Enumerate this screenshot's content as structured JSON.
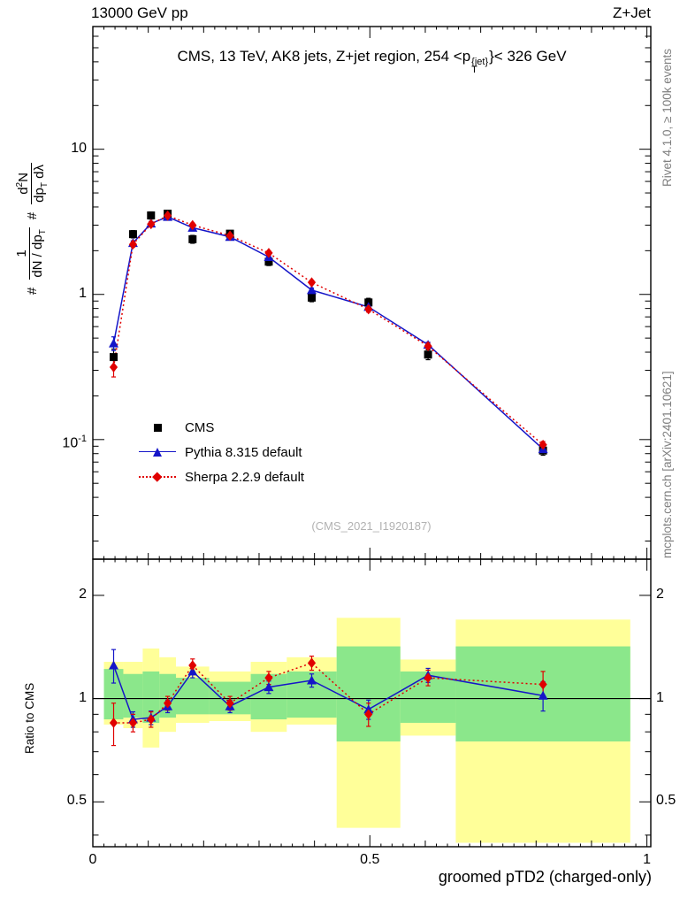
{
  "header": {
    "left": "13000 GeV pp",
    "right": "Z+Jet"
  },
  "title": {
    "prefix": "CMS, 13 TeV, AK8 jets, Z+jet region, 254 <p",
    "sup": "{jet}",
    "sub": "T",
    "suffix": "}< 326 GeV"
  },
  "side_notes": {
    "top": "Rivet 4.1.0, ≥ 100k events",
    "bottom": "mcplots.cern.ch [arXiv:2401.10621]"
  },
  "watermark": "(CMS_2021_I1920187)",
  "ratio_ylabel": "Ratio to CMS",
  "xlabel": "groomed pTD2 (charged-only)",
  "ylabel_main": {
    "hash1": "#",
    "frac1_num": "1",
    "frac1_den_pre": "dN / dp",
    "frac1_den_sub": "T",
    "hash2": "#",
    "frac2_num_pre": "d",
    "frac2_num_sup": "2",
    "frac2_num_post": "N",
    "frac2_den_pre": "dp",
    "frac2_den_sub": "T",
    "frac2_den_post": " dλ"
  },
  "legend": [
    {
      "label": "CMS",
      "marker": "square",
      "color": "#000000",
      "line": "none"
    },
    {
      "label": "Pythia 8.315 default",
      "marker": "triangle",
      "color": "#1515c8",
      "line": "solid"
    },
    {
      "label": "Sherpa 2.2.9 default",
      "marker": "diamond",
      "color": "#e00000",
      "line": "dotted"
    }
  ],
  "chart_data": {
    "type": "line",
    "title": "CMS, 13 TeV, AK8 jets, Z+jet region, 254 <pT{jet}< 326 GeV",
    "xlabel": "groomed pTD2 (charged-only)",
    "xlim": [
      0,
      1.007
    ],
    "xticks": [
      {
        "v": 0,
        "label": "0"
      },
      {
        "v": 0.5,
        "label": "0.5"
      },
      {
        "v": 1,
        "label": "1"
      }
    ],
    "bin_edges": [
      0.02,
      0.055,
      0.09,
      0.12,
      0.15,
      0.21,
      0.285,
      0.35,
      0.44,
      0.555,
      0.655,
      0.97
    ],
    "x": [
      0.0375,
      0.0725,
      0.105,
      0.135,
      0.18,
      0.2475,
      0.3175,
      0.395,
      0.4975,
      0.605,
      0.8125
    ],
    "main": {
      "yscale": "log",
      "ylim": [
        0.015,
        70
      ],
      "yticks": [
        {
          "v": 10,
          "label": "10"
        },
        {
          "v": 1,
          "label": "1"
        },
        {
          "v": 0.1,
          "label": "10^{-1}"
        }
      ],
      "series": [
        {
          "name": "CMS",
          "marker": "square",
          "color": "#000000",
          "line": "none",
          "values": [
            0.37,
            2.6,
            3.5,
            3.6,
            2.4,
            2.62,
            1.68,
            0.95,
            0.88,
            0.385,
            0.084
          ],
          "errors": [
            0.05,
            0.15,
            0.2,
            0.2,
            0.15,
            0.12,
            0.1,
            0.06,
            0.06,
            0.03,
            0.006
          ]
        },
        {
          "name": "Pythia 8.315 default",
          "marker": "triangle",
          "color": "#1515c8",
          "line": "solid",
          "values": [
            0.46,
            2.26,
            3.08,
            3.42,
            2.88,
            2.49,
            1.81,
            1.07,
            0.82,
            0.45,
            0.086
          ],
          "errors": [
            0.05,
            0.08,
            0.1,
            0.1,
            0.09,
            0.07,
            0.05,
            0.035,
            0.03,
            0.018,
            0.004
          ]
        },
        {
          "name": "Sherpa 2.2.9 default",
          "marker": "diamond",
          "color": "#e00000",
          "line": "dotted",
          "values": [
            0.315,
            2.21,
            3.05,
            3.49,
            3.0,
            2.54,
            1.93,
            1.21,
            0.79,
            0.44,
            0.092
          ],
          "errors": [
            0.045,
            0.09,
            0.11,
            0.11,
            0.1,
            0.08,
            0.06,
            0.04,
            0.035,
            0.02,
            0.005
          ]
        }
      ]
    },
    "ratio": {
      "yscale": "log",
      "ylim": [
        0.37,
        2.55
      ],
      "yticks": [
        {
          "v": 0.5,
          "label": "0.5"
        },
        {
          "v": 1,
          "label": "1"
        },
        {
          "v": 2,
          "label": "2"
        }
      ],
      "yminor": [
        0.4,
        0.6,
        0.7,
        0.8,
        0.9
      ],
      "band_colors": {
        "outer": "#ffff99",
        "inner": "#8be78b"
      },
      "bands_outer": [
        [
          0.84,
          1.28
        ],
        [
          0.82,
          1.28
        ],
        [
          0.72,
          1.4
        ],
        [
          0.8,
          1.32
        ],
        [
          0.85,
          1.24
        ],
        [
          0.86,
          1.2
        ],
        [
          0.8,
          1.28
        ],
        [
          0.84,
          1.32
        ],
        [
          0.42,
          1.72
        ],
        [
          0.78,
          1.3
        ],
        [
          0.38,
          1.7
        ]
      ],
      "bands_inner": [
        [
          0.87,
          1.22
        ],
        [
          0.88,
          1.18
        ],
        [
          0.85,
          1.2
        ],
        [
          0.88,
          1.18
        ],
        [
          0.9,
          1.15
        ],
        [
          0.9,
          1.12
        ],
        [
          0.87,
          1.18
        ],
        [
          0.88,
          1.2
        ],
        [
          0.75,
          1.42
        ],
        [
          0.85,
          1.2
        ],
        [
          0.75,
          1.42
        ]
      ],
      "series": [
        {
          "name": "Pythia 8.315 default",
          "marker": "triangle",
          "color": "#1515c8",
          "line": "solid",
          "values": [
            1.25,
            0.87,
            0.88,
            0.95,
            1.2,
            0.95,
            1.08,
            1.13,
            0.93,
            1.17,
            1.02
          ],
          "errors": [
            0.14,
            0.045,
            0.04,
            0.04,
            0.05,
            0.04,
            0.045,
            0.05,
            0.06,
            0.055,
            0.1
          ]
        },
        {
          "name": "Sherpa 2.2.9 default",
          "marker": "diamond",
          "color": "#e00000",
          "line": "dotted",
          "values": [
            0.85,
            0.85,
            0.87,
            0.97,
            1.25,
            0.97,
            1.15,
            1.27,
            0.9,
            1.15,
            1.1
          ],
          "errors": [
            0.12,
            0.05,
            0.045,
            0.045,
            0.055,
            0.045,
            0.05,
            0.06,
            0.07,
            0.06,
            0.1
          ]
        }
      ]
    }
  }
}
